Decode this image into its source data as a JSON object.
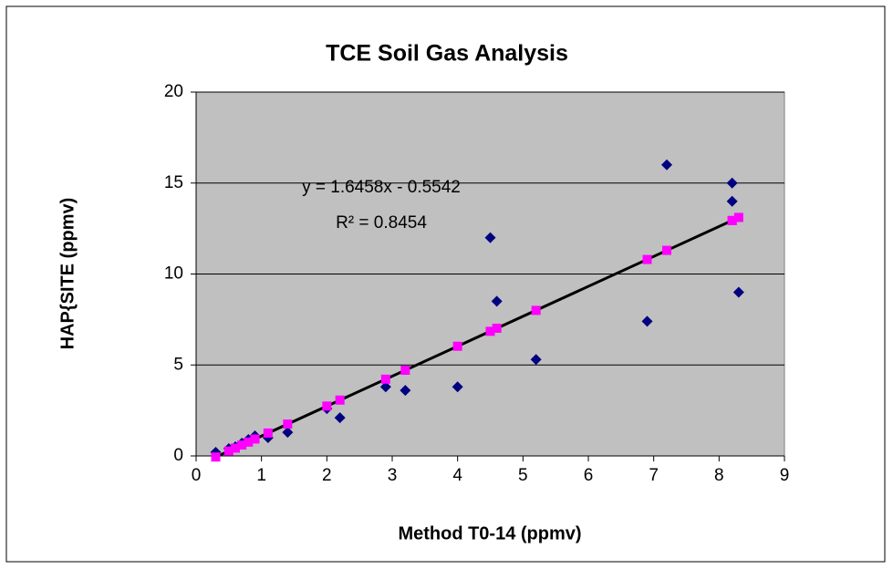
{
  "chart_data": {
    "type": "scatter",
    "title": "TCE  Soil Gas Analysis",
    "x_label": "Method T0-14 (ppmv)",
    "y_label": "HAP{SITE (ppmv)",
    "x": [
      0.3,
      0.5,
      0.6,
      0.7,
      0.8,
      0.9,
      1.1,
      1.4,
      2.0,
      2.2,
      2.9,
      3.2,
      4.0,
      4.5,
      4.6,
      5.2,
      6.9,
      7.2,
      8.2,
      8.2,
      8.3
    ],
    "series": [
      {
        "color": "#000080",
        "marker": "diamond",
        "values": [
          0.2,
          0.4,
          0.5,
          0.7,
          0.9,
          1.1,
          1.0,
          1.3,
          2.6,
          2.1,
          3.8,
          3.6,
          3.8,
          12,
          8.5,
          5.3,
          7.4,
          16,
          15,
          14,
          9
        ]
      },
      {
        "color": "#ff00ff",
        "marker": "square",
        "values": [
          -0.06,
          0.27,
          0.43,
          0.6,
          0.76,
          0.93,
          1.26,
          1.75,
          2.74,
          3.07,
          4.22,
          4.71,
          6.03,
          6.85,
          7.02,
          8.0,
          10.8,
          11.3,
          12.94,
          12.94,
          13.11
        ]
      }
    ],
    "trendline": {
      "slope": 1.6458,
      "intercept": -0.5542,
      "color": "#000000",
      "equation": "y = 1.6458x - 0.5542",
      "r_squared": "R² = 0.8454"
    },
    "xlim": [
      0,
      9
    ],
    "xticks": [
      0,
      1,
      2,
      3,
      4,
      5,
      6,
      7,
      8,
      9
    ],
    "ylim": [
      0,
      20
    ],
    "yticks": [
      0,
      5,
      10,
      15,
      20
    ],
    "grid": true,
    "background": "#c0c0c0"
  }
}
